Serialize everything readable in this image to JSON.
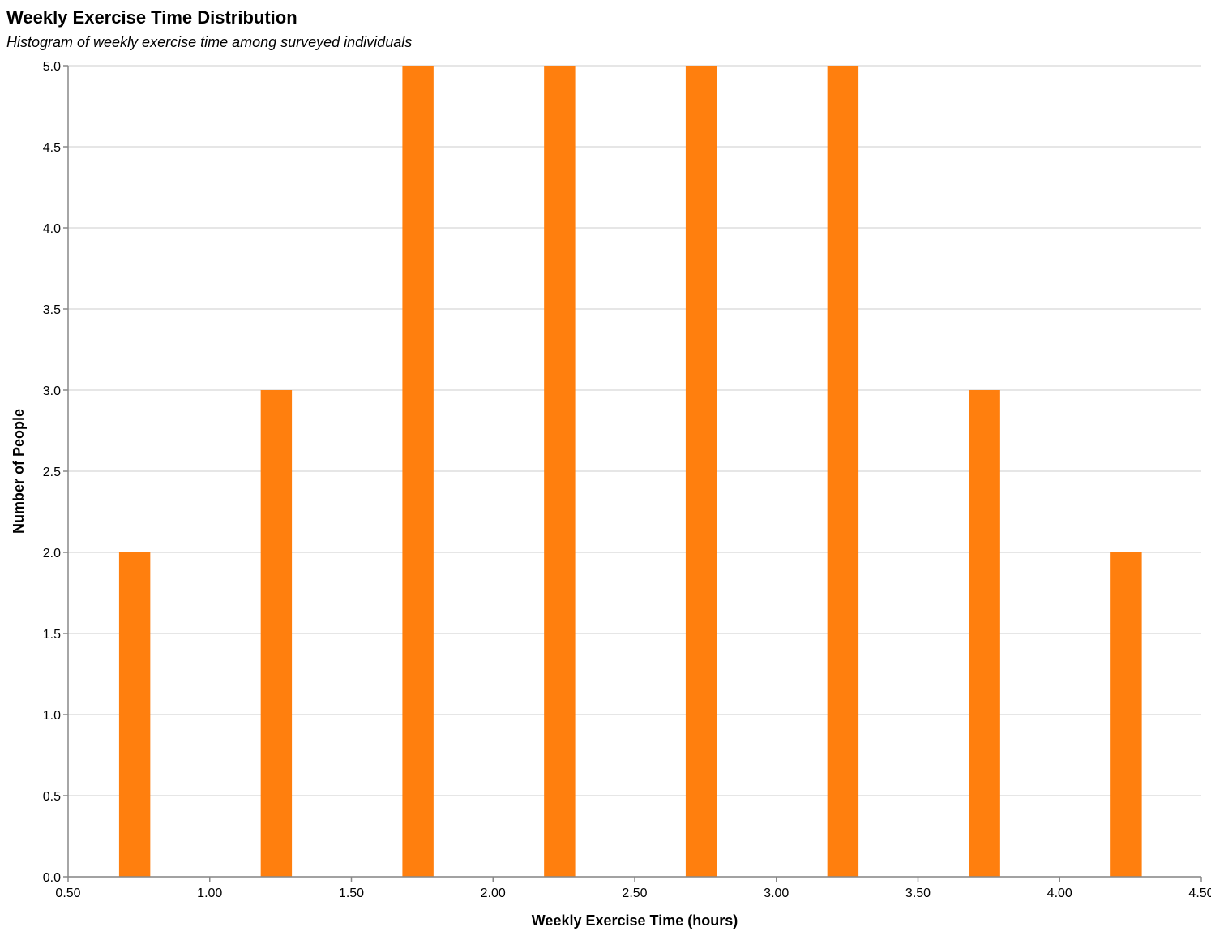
{
  "chart_data": {
    "type": "bar",
    "title": "Weekly Exercise Time Distribution",
    "subtitle": "Histogram of weekly exercise time among surveyed individuals",
    "xlabel": "Weekly Exercise Time (hours)",
    "ylabel": "Number of People",
    "xlim": [
      0.5,
      4.5
    ],
    "ylim": [
      0,
      5
    ],
    "x_ticks": [
      "0.50",
      "1.00",
      "1.50",
      "2.00",
      "2.50",
      "3.00",
      "3.50",
      "4.00",
      "4.50"
    ],
    "y_ticks": [
      "0.0",
      "0.5",
      "1.0",
      "1.5",
      "2.0",
      "2.5",
      "3.0",
      "3.5",
      "4.0",
      "4.5",
      "5.0"
    ],
    "grid": true,
    "bar_color": "#ff7f0e",
    "bars": [
      {
        "x_start": 0.68,
        "x_end": 0.79,
        "value": 2
      },
      {
        "x_start": 1.18,
        "x_end": 1.29,
        "value": 3
      },
      {
        "x_start": 1.68,
        "x_end": 1.79,
        "value": 5
      },
      {
        "x_start": 2.18,
        "x_end": 2.29,
        "value": 5
      },
      {
        "x_start": 2.68,
        "x_end": 2.79,
        "value": 5
      },
      {
        "x_start": 3.18,
        "x_end": 3.29,
        "value": 5
      },
      {
        "x_start": 3.68,
        "x_end": 3.79,
        "value": 3
      },
      {
        "x_start": 4.18,
        "x_end": 4.29,
        "value": 2
      }
    ]
  }
}
